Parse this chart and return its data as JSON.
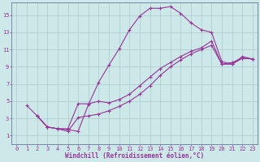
{
  "xlabel": "Windchill (Refroidissement éolien,°C)",
  "background_color": "#cce8e8",
  "grid_color": "#aacccc",
  "line_color": "#993399",
  "spine_color": "#667799",
  "xlim": [
    -0.5,
    23.5
  ],
  "ylim": [
    0,
    16.5
  ],
  "xticks": [
    0,
    1,
    2,
    3,
    4,
    5,
    6,
    7,
    8,
    9,
    10,
    11,
    12,
    13,
    14,
    15,
    16,
    17,
    18,
    19,
    20,
    21,
    22,
    23
  ],
  "yticks": [
    1,
    3,
    5,
    7,
    9,
    11,
    13,
    15
  ],
  "lines": [
    {
      "x": [
        1,
        2,
        3,
        4,
        5,
        6,
        7,
        8,
        9,
        10,
        11,
        12,
        13,
        14,
        15,
        16,
        17,
        18,
        19,
        20,
        21,
        22,
        23
      ],
      "y": [
        4.5,
        3.3,
        2.0,
        1.8,
        1.7,
        1.5,
        4.6,
        7.2,
        9.2,
        11.1,
        13.3,
        14.9,
        15.8,
        15.8,
        16.0,
        15.2,
        14.1,
        13.3,
        13.0,
        9.6,
        9.3,
        10.2,
        9.9
      ]
    },
    {
      "x": [
        2,
        3,
        4,
        5,
        6,
        7,
        8,
        9,
        10,
        11,
        12,
        13,
        14,
        15,
        16,
        17,
        18,
        19,
        20,
        21,
        22,
        23
      ],
      "y": [
        3.3,
        2.0,
        1.8,
        1.8,
        4.7,
        4.7,
        5.0,
        4.8,
        5.2,
        5.8,
        6.8,
        7.8,
        8.8,
        9.5,
        10.2,
        10.8,
        11.2,
        12.0,
        9.3,
        9.5,
        10.0,
        9.9
      ]
    },
    {
      "x": [
        2,
        3,
        4,
        5,
        6,
        7,
        8,
        9,
        10,
        11,
        12,
        13,
        14,
        15,
        16,
        17,
        18,
        19,
        20,
        21,
        22,
        23
      ],
      "y": [
        3.3,
        2.0,
        1.8,
        1.5,
        3.1,
        3.3,
        3.5,
        3.9,
        4.4,
        5.0,
        5.8,
        6.8,
        8.0,
        9.0,
        9.8,
        10.5,
        11.0,
        11.5,
        9.3,
        9.3,
        10.0,
        9.9
      ]
    }
  ],
  "tick_fontsize": 5,
  "xlabel_fontsize": 5.5
}
